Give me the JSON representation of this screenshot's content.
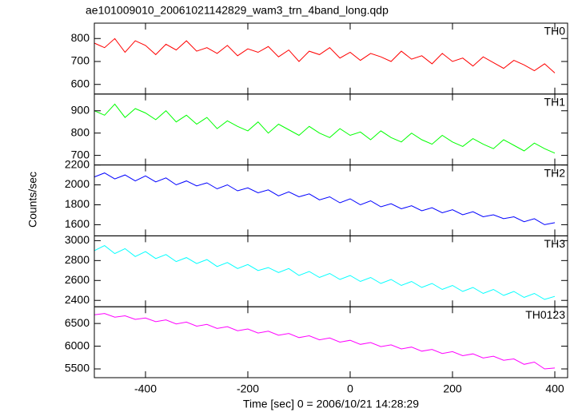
{
  "title": "ae101009010_20061021142829_wam3_trn_4band_long.qdp",
  "xlabel": "Time [sec] 0 = 2006/10/21 14:28:29",
  "ylabel": "Counts/sec",
  "chart_data": [
    {
      "type": "line",
      "name": "TH0",
      "color": "#ff0000",
      "xlim": [
        -500,
        425
      ],
      "ylim": [
        558,
        867
      ],
      "yticks": [
        600,
        700,
        800
      ],
      "x": [
        -500,
        -480,
        -460,
        -440,
        -420,
        -400,
        -380,
        -360,
        -340,
        -320,
        -300,
        -280,
        -260,
        -240,
        -220,
        -200,
        -180,
        -160,
        -140,
        -120,
        -100,
        -80,
        -60,
        -40,
        -20,
        0,
        20,
        40,
        60,
        80,
        100,
        120,
        140,
        160,
        180,
        200,
        220,
        240,
        260,
        280,
        300,
        320,
        340,
        360,
        380,
        400
      ],
      "values": [
        780,
        760,
        800,
        740,
        790,
        770,
        730,
        775,
        750,
        790,
        745,
        760,
        735,
        770,
        725,
        755,
        740,
        765,
        720,
        750,
        700,
        745,
        730,
        760,
        715,
        740,
        705,
        735,
        720,
        700,
        745,
        710,
        725,
        690,
        735,
        700,
        715,
        680,
        720,
        695,
        670,
        705,
        685,
        660,
        690,
        650
      ]
    },
    {
      "type": "line",
      "name": "TH1",
      "color": "#00ff00",
      "xlim": [
        -500,
        425
      ],
      "ylim": [
        657,
        975
      ],
      "yticks": [
        700,
        800,
        900
      ],
      "x": [
        -500,
        -480,
        -460,
        -440,
        -420,
        -400,
        -380,
        -360,
        -340,
        -320,
        -300,
        -280,
        -260,
        -240,
        -220,
        -200,
        -180,
        -160,
        -140,
        -120,
        -100,
        -80,
        -60,
        -40,
        -20,
        0,
        20,
        40,
        60,
        80,
        100,
        120,
        140,
        160,
        180,
        200,
        220,
        240,
        260,
        280,
        300,
        320,
        340,
        360,
        380,
        400
      ],
      "values": [
        900,
        880,
        930,
        870,
        910,
        890,
        860,
        900,
        850,
        880,
        840,
        870,
        820,
        855,
        830,
        810,
        850,
        800,
        840,
        815,
        790,
        830,
        800,
        780,
        820,
        790,
        805,
        770,
        810,
        780,
        760,
        800,
        770,
        750,
        790,
        760,
        740,
        775,
        750,
        730,
        770,
        745,
        720,
        755,
        730,
        710
      ]
    },
    {
      "type": "line",
      "name": "TH2",
      "color": "#0000ff",
      "xlim": [
        -500,
        425
      ],
      "ylim": [
        1488,
        2200
      ],
      "yticks": [
        1600,
        1800,
        2000,
        2200
      ],
      "x": [
        -500,
        -480,
        -460,
        -440,
        -420,
        -400,
        -380,
        -360,
        -340,
        -320,
        -300,
        -280,
        -260,
        -240,
        -220,
        -200,
        -180,
        -160,
        -140,
        -120,
        -100,
        -80,
        -60,
        -40,
        -20,
        0,
        20,
        40,
        60,
        80,
        100,
        120,
        140,
        160,
        180,
        200,
        220,
        240,
        260,
        280,
        300,
        320,
        340,
        360,
        380,
        400
      ],
      "values": [
        2080,
        2120,
        2060,
        2100,
        2040,
        2090,
        2030,
        2070,
        2000,
        2040,
        1990,
        2020,
        1960,
        2000,
        1940,
        1970,
        1920,
        1950,
        1890,
        1930,
        1880,
        1910,
        1850,
        1880,
        1820,
        1860,
        1800,
        1840,
        1780,
        1810,
        1760,
        1790,
        1740,
        1770,
        1720,
        1750,
        1700,
        1730,
        1680,
        1700,
        1660,
        1680,
        1630,
        1660,
        1600,
        1620
      ]
    },
    {
      "type": "line",
      "name": "TH3",
      "color": "#00ffff",
      "xlim": [
        -500,
        425
      ],
      "ylim": [
        2336,
        3048
      ],
      "yticks": [
        2400,
        2600,
        2800,
        3000
      ],
      "x": [
        -500,
        -480,
        -460,
        -440,
        -420,
        -400,
        -380,
        -360,
        -340,
        -320,
        -300,
        -280,
        -260,
        -240,
        -220,
        -200,
        -180,
        -160,
        -140,
        -120,
        -100,
        -80,
        -60,
        -40,
        -20,
        0,
        20,
        40,
        60,
        80,
        100,
        120,
        140,
        160,
        180,
        200,
        220,
        240,
        260,
        280,
        300,
        320,
        340,
        360,
        380,
        400
      ],
      "values": [
        2900,
        2950,
        2870,
        2920,
        2840,
        2890,
        2820,
        2860,
        2790,
        2830,
        2770,
        2810,
        2740,
        2780,
        2720,
        2760,
        2700,
        2730,
        2680,
        2720,
        2650,
        2690,
        2630,
        2670,
        2610,
        2650,
        2590,
        2630,
        2570,
        2610,
        2550,
        2590,
        2530,
        2570,
        2510,
        2550,
        2490,
        2530,
        2470,
        2510,
        2450,
        2490,
        2430,
        2470,
        2410,
        2440
      ]
    },
    {
      "type": "line",
      "name": "TH0123",
      "color": "#ff00ff",
      "xlim": [
        -500,
        425
      ],
      "ylim": [
        5307,
        6868
      ],
      "yticks": [
        5500,
        6000,
        6500
      ],
      "xticks": [
        -400,
        -200,
        0,
        200,
        400
      ],
      "x": [
        -500,
        -480,
        -460,
        -440,
        -420,
        -400,
        -380,
        -360,
        -340,
        -320,
        -300,
        -280,
        -260,
        -240,
        -220,
        -200,
        -180,
        -160,
        -140,
        -120,
        -100,
        -80,
        -60,
        -40,
        -20,
        0,
        20,
        40,
        60,
        80,
        100,
        120,
        140,
        160,
        180,
        200,
        220,
        240,
        260,
        280,
        300,
        320,
        340,
        360,
        380,
        400
      ],
      "values": [
        6690,
        6720,
        6640,
        6670,
        6590,
        6620,
        6540,
        6580,
        6490,
        6530,
        6440,
        6480,
        6390,
        6430,
        6340,
        6380,
        6290,
        6330,
        6240,
        6280,
        6190,
        6230,
        6140,
        6180,
        6090,
        6130,
        6040,
        6080,
        5990,
        6030,
        5940,
        5980,
        5890,
        5930,
        5840,
        5880,
        5790,
        5830,
        5740,
        5780,
        5690,
        5720,
        5600,
        5650,
        5500,
        5520
      ]
    }
  ]
}
